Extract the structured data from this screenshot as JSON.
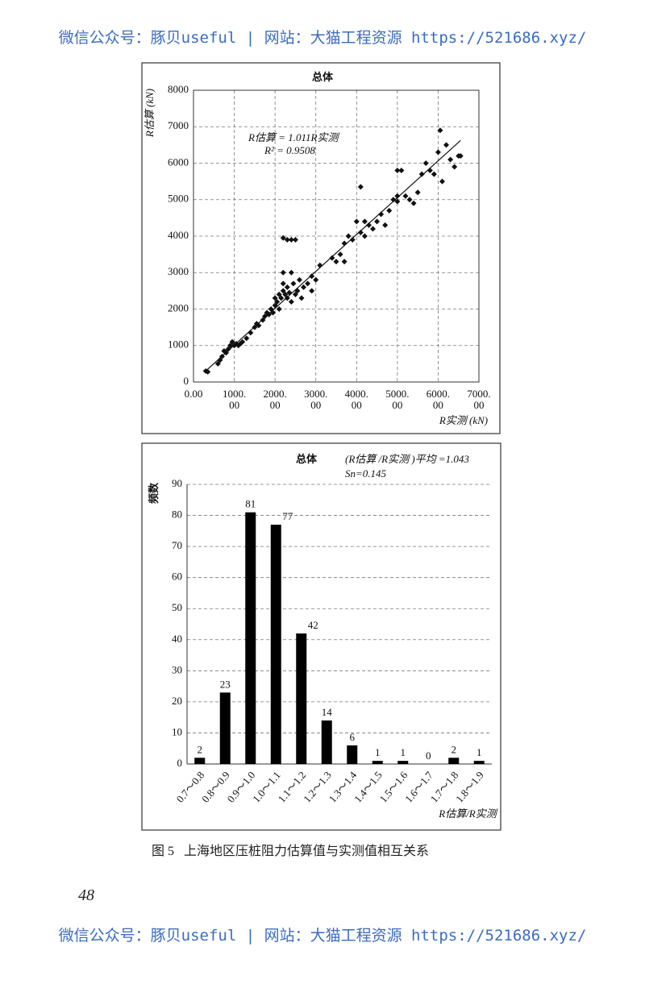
{
  "header": {
    "watermark": "微信公众号：豚贝useful | 网站：大猫工程资源 https://521686.xyz/"
  },
  "chart_data": [
    {
      "type": "scatter",
      "title": "总体",
      "x_label": "R实测 (kN)",
      "y_label": "R估算 (kN)",
      "trendline": {
        "slope": 1.011,
        "label": "R估算 = 1.011R实测"
      },
      "r2_label": "R² = 0.9508",
      "x": [
        300,
        350,
        600,
        650,
        700,
        750,
        800,
        850,
        900,
        950,
        1000,
        1050,
        1100,
        1150,
        1200,
        1300,
        1400,
        1500,
        1550,
        1600,
        1700,
        1750,
        1800,
        1850,
        1900,
        1950,
        2000,
        2000,
        2050,
        2100,
        2100,
        2150,
        2200,
        2200,
        2250,
        2300,
        2300,
        2350,
        2400,
        2450,
        2500,
        2550,
        2600,
        2650,
        2700,
        2800,
        2900,
        2900,
        3000,
        3100,
        2200,
        2300,
        2400,
        2500,
        2200,
        2400,
        3400,
        3500,
        3600,
        3700,
        3800,
        3900,
        4000,
        4100,
        4100,
        4200,
        4300,
        4400,
        4500,
        4600,
        4700,
        4800,
        4900,
        5000,
        5000,
        5100,
        5200,
        5300,
        5400,
        5500,
        5600,
        5700,
        5800,
        5900,
        6000,
        6050,
        6100,
        6200,
        6300,
        6400,
        6500,
        6550,
        5000,
        4200,
        3700
      ],
      "values": [
        300,
        280,
        500,
        600,
        700,
        850,
        800,
        900,
        1000,
        1100,
        1000,
        1050,
        1000,
        1050,
        1100,
        1200,
        1350,
        1500,
        1600,
        1550,
        1700,
        1800,
        1900,
        1850,
        2000,
        1900,
        2100,
        2300,
        2200,
        2400,
        2000,
        2300,
        2500,
        2700,
        2400,
        2300,
        2600,
        2450,
        2200,
        2700,
        2400,
        2500,
        2800,
        2300,
        2600,
        2700,
        2500,
        2900,
        2800,
        3200,
        3950,
        3900,
        3900,
        3900,
        3000,
        3000,
        3400,
        3300,
        3500,
        3800,
        4000,
        3900,
        4400,
        4100,
        5350,
        4000,
        4300,
        4200,
        4400,
        4600,
        4300,
        4700,
        5000,
        4950,
        5100,
        5800,
        5100,
        5000,
        4900,
        5200,
        5700,
        6000,
        5800,
        5700,
        6300,
        6900,
        5500,
        6500,
        6100,
        5900,
        6200,
        6200,
        5800,
        4400,
        3300
      ],
      "color": "#111111",
      "xlim": [
        0,
        7000
      ],
      "ylim": [
        0,
        8000
      ],
      "xticks": [
        {
          "value": 0,
          "label": "0.00"
        },
        {
          "value": 1000,
          "label": "1000.\n00"
        },
        {
          "value": 2000,
          "label": "2000.\n00"
        },
        {
          "value": 3000,
          "label": "3000.\n00"
        },
        {
          "value": 4000,
          "label": "4000.\n00"
        },
        {
          "value": 5000,
          "label": "5000.\n00"
        },
        {
          "value": 6000,
          "label": "6000.\n00"
        },
        {
          "value": 7000,
          "label": "7000.\n00"
        }
      ],
      "yticks": [
        0,
        1000,
        2000,
        3000,
        4000,
        5000,
        6000,
        7000,
        8000
      ],
      "grid": true
    },
    {
      "type": "bar",
      "title": "总体",
      "annotations": [
        "(R估算 /R实测 )平均 =1.043",
        "Sn=0.145"
      ],
      "x_label": "R估算/R实测",
      "y_label": "频数",
      "categories": [
        "0.7～0.8",
        "0.8～0.9",
        "0.9～1.0",
        "1.0～1.1",
        "1.1～1.2",
        "1.2～1.3",
        "1.3～1.4",
        "1.4～1.5",
        "1.5～1.6",
        "1.6～1.7",
        "1.7～1.8",
        "1.8～1.9"
      ],
      "values": [
        2,
        23,
        81,
        77,
        42,
        14,
        6,
        1,
        1,
        0,
        2,
        1
      ],
      "color": "#000000",
      "ylim": [
        0,
        90
      ],
      "yticks": [
        0,
        10,
        20,
        30,
        40,
        50,
        60,
        70,
        80,
        90
      ],
      "grid": true
    }
  ],
  "caption": "图 5   上海地区压桩阻力估算值与实测值相互关系",
  "page_number": "48",
  "footer": {
    "watermark": "微信公众号：豚贝useful | 网站：大猫工程资源 https://521686.xyz/"
  }
}
